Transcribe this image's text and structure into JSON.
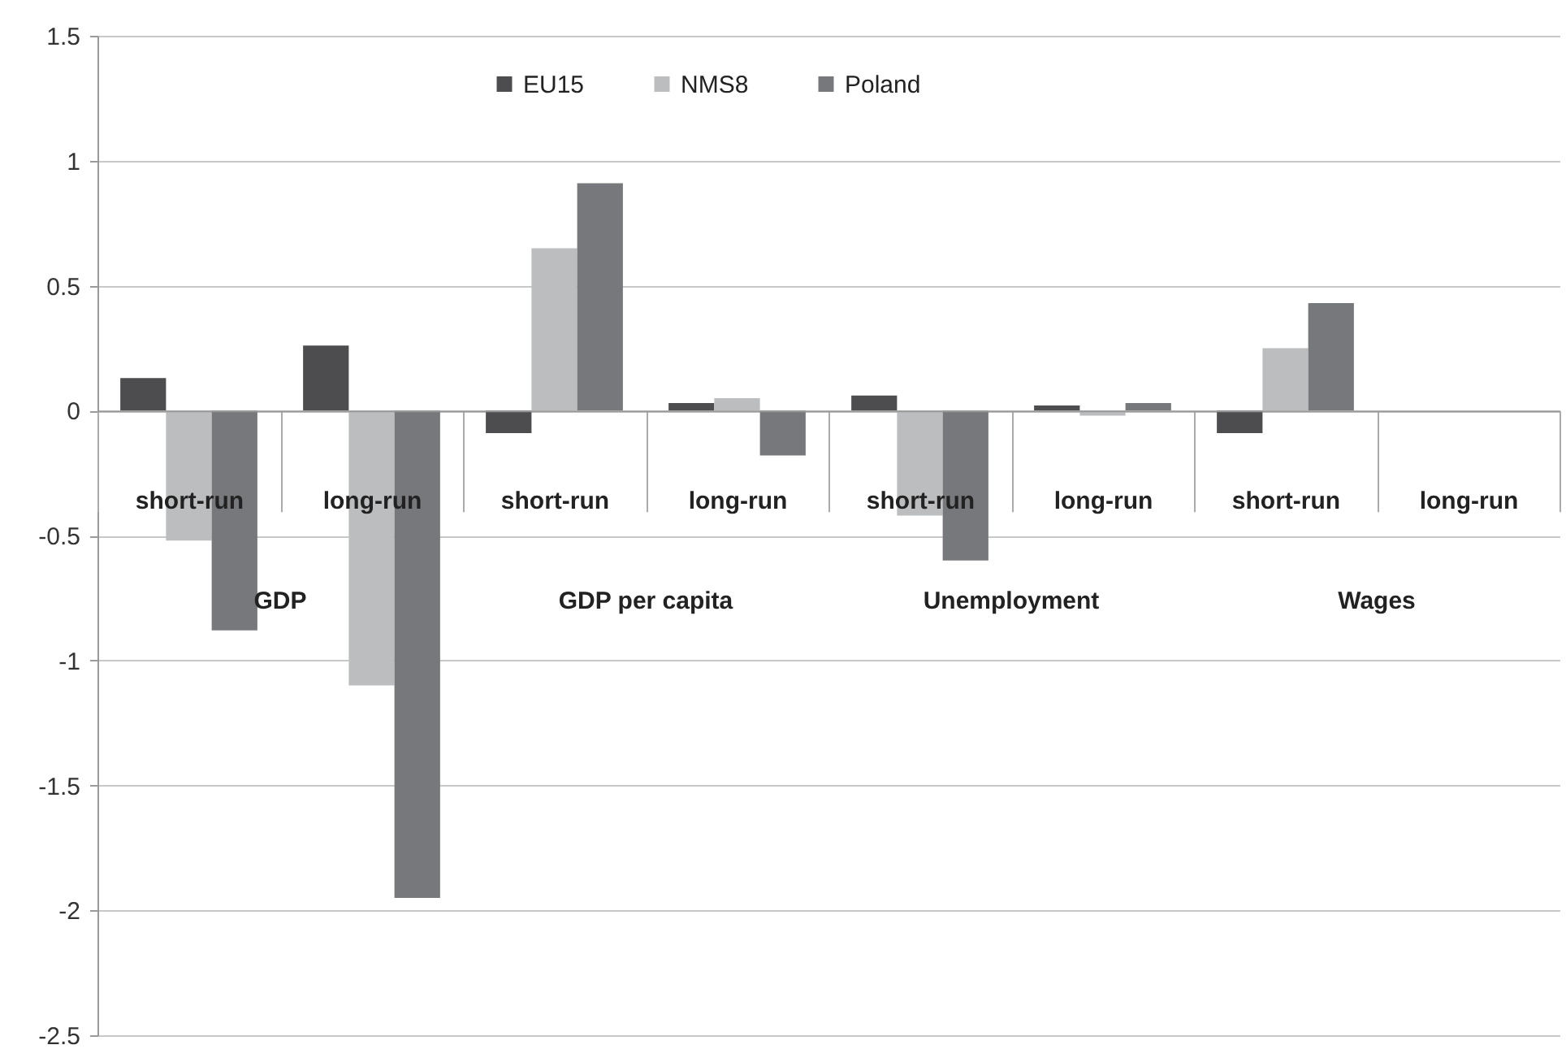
{
  "chart_data": {
    "type": "bar",
    "categories": [
      "short-run",
      "long-run",
      "short-run",
      "long-run",
      "short-run",
      "long-run",
      "short-run",
      "long-run"
    ],
    "annotations": [
      "GDP",
      "GDP per capita",
      "Unemployment",
      "Wages"
    ],
    "series": [
      {
        "name": "EU15",
        "color": "#4d4d4f",
        "values": [
          0.13,
          0.26,
          -0.09,
          0.03,
          0.06,
          0.02,
          -0.09,
          null
        ]
      },
      {
        "name": "NMS8",
        "color": "#bcbdbf",
        "values": [
          -0.52,
          -1.1,
          0.65,
          0.05,
          -0.42,
          -0.02,
          0.25,
          null
        ]
      },
      {
        "name": "Poland",
        "color": "#77787b",
        "values": [
          -0.88,
          -1.95,
          0.91,
          -0.18,
          -0.6,
          0.03,
          0.43,
          null
        ]
      }
    ],
    "ylim": [
      -2.5,
      1.5
    ],
    "yticks": [
      -2.5,
      -2,
      -1.5,
      -1,
      -0.5,
      0,
      0.5,
      1,
      1.5
    ],
    "grid": "y",
    "legend": "top"
  }
}
